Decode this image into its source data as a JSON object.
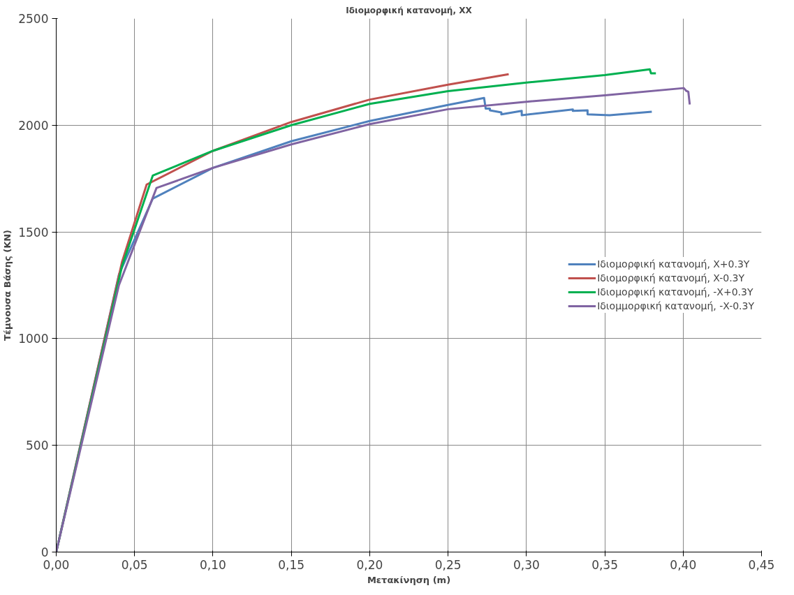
{
  "chart_data": {
    "type": "line",
    "title": "Ιδιομορφική κατανομή, XX",
    "xlabel": "Μετακίνηση (m)",
    "ylabel": "Τέμνουσα Βάσης (KN)",
    "xlim": [
      0,
      0.45
    ],
    "ylim": [
      0,
      2500
    ],
    "xticks": [
      {
        "value": 0,
        "label": "0,00"
      },
      {
        "value": 0.05,
        "label": "0,05"
      },
      {
        "value": 0.1,
        "label": "0,10"
      },
      {
        "value": 0.15,
        "label": "0,15"
      },
      {
        "value": 0.2,
        "label": "0,20"
      },
      {
        "value": 0.25,
        "label": "0,25"
      },
      {
        "value": 0.3,
        "label": "0,30"
      },
      {
        "value": 0.35,
        "label": "0,35"
      },
      {
        "value": 0.4,
        "label": "0,40"
      },
      {
        "value": 0.45,
        "label": "0,45"
      }
    ],
    "yticks": [
      0,
      500,
      1000,
      1500,
      2000,
      2500
    ],
    "grid": true,
    "legend": "right",
    "marker": "none",
    "line_style": "solid",
    "series": [
      {
        "name": "Ιδιομορφική κατανομή, X+0.3Y",
        "color": "#4f81bd",
        "x": [
          0,
          0.04,
          0.0616,
          0.1,
          0.15,
          0.2,
          0.25,
          0.273,
          0.274,
          0.2767,
          0.2767,
          0.284,
          0.284,
          0.297,
          0.297,
          0.3296,
          0.3296,
          0.339,
          0.339,
          0.353,
          0.38
        ],
        "values": [
          0,
          1300,
          1656,
          1800,
          1925,
          2020,
          2095,
          2128,
          2078,
          2078,
          2070,
          2060,
          2051,
          2067,
          2047,
          2074,
          2067,
          2070,
          2051,
          2047,
          2063
        ]
      },
      {
        "name": "Ιδιομορφική κατανομή, X-0.3Y",
        "color": "#c0504d",
        "x": [
          0,
          0.042,
          0.0577,
          0.1,
          0.15,
          0.2,
          0.25,
          0.2887
        ],
        "values": [
          0,
          1360,
          1722,
          1880,
          2015,
          2120,
          2190,
          2239
        ]
      },
      {
        "name": "Ιδιομορφική κατανομή, -X+0.3Y",
        "color": "#00b050",
        "x": [
          0,
          0.042,
          0.0616,
          0.1,
          0.15,
          0.2,
          0.25,
          0.3,
          0.35,
          0.3787,
          0.3795,
          0.3826
        ],
        "values": [
          0,
          1340,
          1764,
          1880,
          2000,
          2100,
          2160,
          2200,
          2235,
          2262,
          2243,
          2243
        ]
      },
      {
        "name": "Ιδιομμορφική κατανομή, -X-0.3Y",
        "color": "#8064a2",
        "x": [
          0,
          0.04,
          0.064,
          0.1,
          0.15,
          0.2,
          0.25,
          0.3,
          0.35,
          0.4004,
          0.4018,
          0.4033,
          0.4042
        ],
        "values": [
          0,
          1250,
          1706,
          1800,
          1910,
          2005,
          2075,
          2110,
          2140,
          2174,
          2162,
          2157,
          2097
        ]
      }
    ]
  }
}
